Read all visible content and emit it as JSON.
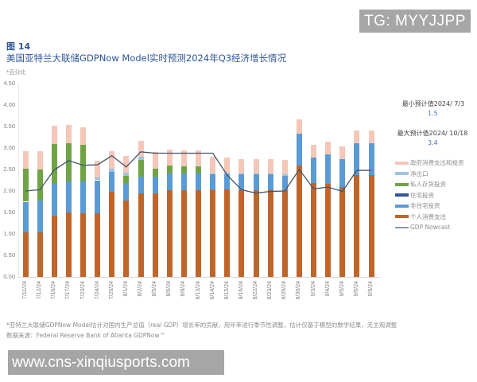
{
  "watermarks": {
    "top": "TG: MYYJJPP",
    "bottom": "www.cns-xinqiusports.com"
  },
  "header": {
    "figure_label": "图 14",
    "title": "美国亚特兰大联储GDPNow Model实时预测2024年Q3经济增长情况",
    "unit": "*百分比"
  },
  "annotations": {
    "min_label": "最小预计值2024/ 7/3",
    "min_value": "1.5",
    "max_label": "最大预计值2024/ 10/18",
    "max_value": "3.4"
  },
  "footer": {
    "note": "*亚特兰大联储GDPNow Model估计对国内生产总值（real GDP）增长率的贡献，用年率进行季节性调整，估计仅基于模型的数学结果，无主观调整",
    "source": "数据来源：Federal Reserve Bank of Atlanta GDPNow™"
  },
  "colors": {
    "government": "#f4c7b8",
    "net_exports": "#9dc3e6",
    "inventory": "#70a346",
    "residential": "#2f5597",
    "nonresidential": "#5b9bd5",
    "pce": "#c0652a",
    "gdp_line": "#44546a",
    "gdp_legend": "#8497b0"
  },
  "chart_data": {
    "type": "bar",
    "stacked": true,
    "title": "美国亚特兰大联储GDPNow Model实时预测2024年Q3经济增长情况",
    "xlabel": "",
    "ylabel": "百分比",
    "ylim": [
      0,
      4.5
    ],
    "yticks": [
      "0.00",
      "0.50",
      "1.00",
      "1.50",
      "2.00",
      "2.50",
      "3.00",
      "3.50",
      "4.00",
      "4.50"
    ],
    "grid": false,
    "legend_position": "right",
    "categories": [
      "7/11/24",
      "7/12/24",
      "7/16/24",
      "7/17/24",
      "7/23/24",
      "7/24/24",
      "7/26/24",
      "8/1/24",
      "8/2/24",
      "8/5/24",
      "8/6/24",
      "8/8/24",
      "8/13/24",
      "8/14/24",
      "8/15/24",
      "8/16/24",
      "8/22/24",
      "8/23/24",
      "8/26/24",
      "8/30/24",
      "9/3/24",
      "9/4/24",
      "9/5/24",
      "9/6/24",
      "9/9/24"
    ],
    "series": [
      {
        "name": "个人消费支出",
        "key": "pce",
        "values": [
          1.04,
          1.04,
          1.43,
          1.5,
          1.49,
          1.49,
          1.99,
          1.78,
          1.95,
          1.95,
          2.01,
          2.01,
          2.01,
          2.01,
          2.03,
          2.02,
          2.02,
          2.02,
          2.02,
          2.59,
          2.19,
          2.16,
          2.09,
          2.37,
          2.37
        ]
      },
      {
        "name": "非住宅投资",
        "key": "nonresidential",
        "values": [
          0.71,
          0.73,
          0.73,
          0.73,
          0.74,
          0.76,
          0.45,
          0.41,
          0.39,
          0.39,
          0.39,
          0.39,
          0.39,
          0.37,
          0.35,
          0.36,
          0.36,
          0.36,
          0.34,
          0.74,
          0.58,
          0.69,
          0.65,
          0.75,
          0.75
        ]
      },
      {
        "name": "住宅投资",
        "key": "residential",
        "values": [
          0,
          0,
          0,
          0,
          0,
          0,
          0,
          0,
          0,
          0,
          0,
          0,
          0,
          0,
          0,
          0,
          0,
          0,
          0,
          0,
          0,
          0,
          0,
          0,
          0
        ]
      },
      {
        "name": "私人存货投资",
        "key": "inventory",
        "values": [
          0.77,
          0.73,
          0.94,
          0.89,
          0.85,
          0,
          0,
          0.16,
          0.39,
          0.18,
          0.19,
          0.17,
          0.17,
          0,
          0,
          0,
          0,
          0,
          0,
          0,
          0,
          0,
          0,
          0,
          0
        ]
      },
      {
        "name": "净出口",
        "key": "net_exports",
        "values": [
          0,
          0,
          0,
          0,
          0,
          0.06,
          0.08,
          0.08,
          0.07,
          0,
          0,
          0,
          0,
          0.02,
          0.04,
          0.02,
          0.02,
          0.02,
          0.02,
          0,
          0,
          0,
          0,
          0,
          0
        ]
      },
      {
        "name": "政府消费支出和投资",
        "key": "government",
        "values": [
          0.41,
          0.43,
          0.41,
          0.42,
          0.41,
          0.4,
          0.41,
          0.39,
          0.37,
          0.38,
          0.37,
          0.37,
          0.37,
          0.4,
          0.35,
          0.35,
          0.35,
          0.34,
          0.34,
          0.34,
          0.3,
          0.29,
          0.3,
          0.29,
          0.29
        ]
      }
    ],
    "line": {
      "name": "GDP Nowcast",
      "values": [
        2.0,
        2.03,
        2.49,
        2.71,
        2.6,
        2.61,
        2.82,
        2.56,
        2.91,
        2.88,
        2.88,
        2.88,
        2.88,
        2.88,
        2.37,
        2.03,
        1.95,
        1.99,
        2.0,
        2.5,
        2.05,
        2.09,
        1.99,
        2.48,
        2.48
      ]
    },
    "legend": [
      "政府消费支出和投资",
      "净出口",
      "私人存货投资",
      "住宅投资",
      "非住宅投资",
      "个人消费支出",
      "GDP Nowcast"
    ]
  }
}
